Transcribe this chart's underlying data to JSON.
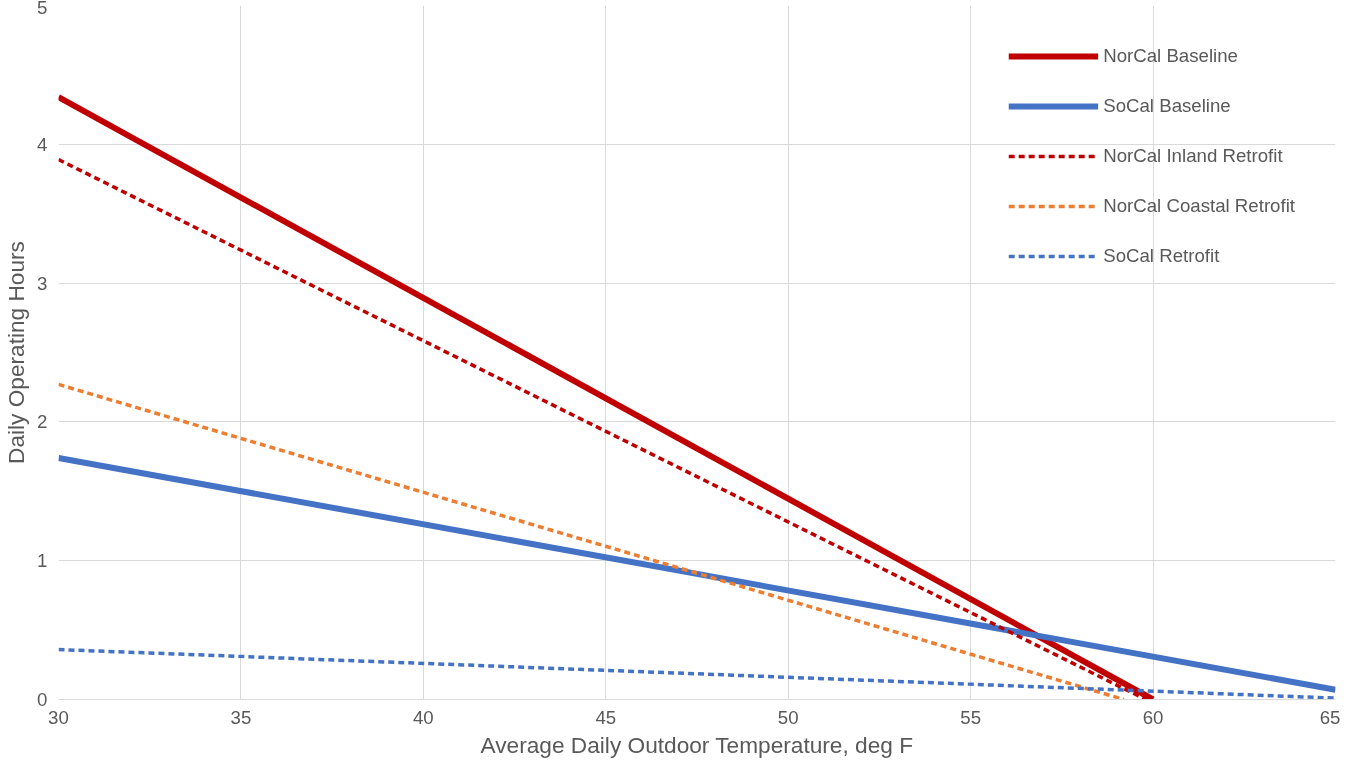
{
  "chart_data": {
    "type": "line",
    "xlabel": "Average Daily Outdoor Temperature, deg F",
    "ylabel": "Daily Operating Hours",
    "xlim": [
      30,
      65
    ],
    "xticks": [
      30,
      35,
      40,
      45,
      50,
      55,
      60,
      65
    ],
    "ylim": [
      0,
      5
    ],
    "yticks": [
      0,
      1,
      2,
      3,
      4,
      5
    ],
    "grid": true,
    "legend": "top right",
    "marker": "none",
    "series": [
      {
        "name": "NorCal Baseline",
        "color": "#c00000",
        "line_style": "solid",
        "x": [
          30,
          60
        ],
        "values": [
          4.34,
          0
        ]
      },
      {
        "name": "SoCal Baseline",
        "color": "#4472c4",
        "line_style": "solid",
        "x": [
          30,
          65
        ],
        "values": [
          1.74,
          0.07
        ]
      },
      {
        "name": "NorCal Inland Retrofit",
        "color": "#c00000",
        "line_style": "dashed",
        "x": [
          30,
          59.8
        ],
        "values": [
          3.89,
          0
        ]
      },
      {
        "name": "NorCal Coastal Retrofit",
        "color": "#ed7d31",
        "line_style": "dashed",
        "x": [
          30,
          59.2
        ],
        "values": [
          2.27,
          0
        ]
      },
      {
        "name": "SoCal Retrofit",
        "color": "#4472c4",
        "line_style": "dashed",
        "x": [
          30,
          65
        ],
        "values": [
          0.36,
          0.01
        ]
      }
    ]
  }
}
